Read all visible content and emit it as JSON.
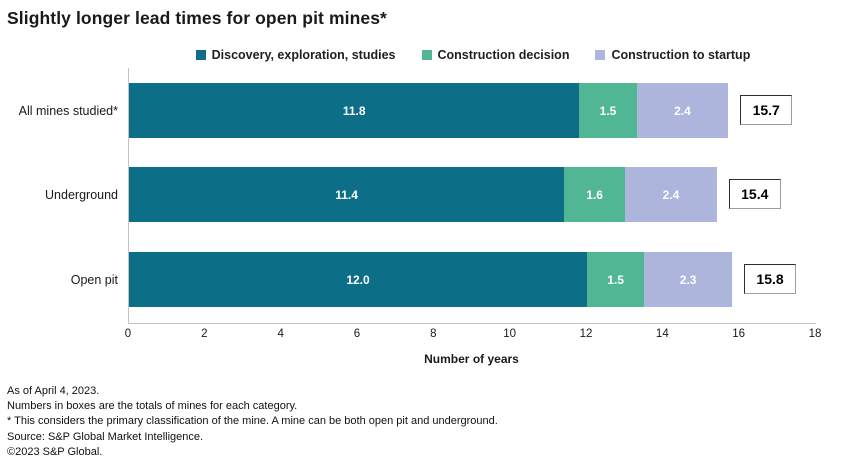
{
  "title": "Slightly longer lead times for open pit mines*",
  "chart_data": {
    "type": "bar",
    "orientation": "horizontal",
    "stacked": true,
    "title": "Slightly longer lead times for open pit mines*",
    "categories": [
      "All mines studied*",
      "Underground",
      "Open pit"
    ],
    "series": [
      {
        "name": "Discovery, exploration, studies",
        "color": "#0d6e87",
        "values": [
          11.8,
          11.4,
          12.0
        ],
        "labels": [
          "11.8",
          "11.4",
          "12.0"
        ]
      },
      {
        "name": "Construction decision",
        "color": "#50b694",
        "values": [
          1.5,
          1.6,
          1.5
        ],
        "labels": [
          "1.5",
          "1.6",
          "1.5"
        ]
      },
      {
        "name": "Construction to startup",
        "color": "#adb5dd",
        "values": [
          2.4,
          2.4,
          2.3
        ],
        "labels": [
          "2.4",
          "2.4",
          "2.3"
        ]
      }
    ],
    "totals": [
      15.7,
      15.4,
      15.8
    ],
    "total_labels": [
      "15.7",
      "15.4",
      "15.8"
    ],
    "xlabel": "Number of years",
    "xlim": [
      0,
      18
    ],
    "xticks": [
      0,
      2,
      4,
      6,
      8,
      10,
      12,
      14,
      16,
      18
    ],
    "legend_position": "top",
    "grid": false
  },
  "footnotes": [
    "As of April 4, 2023.",
    "Numbers in boxes are the totals of mines for each category.",
    "* This considers the primary classification of the mine. A mine can be both open pit and underground.",
    "Source: S&P Global Market Intelligence.",
    "©2023 S&P Global."
  ]
}
